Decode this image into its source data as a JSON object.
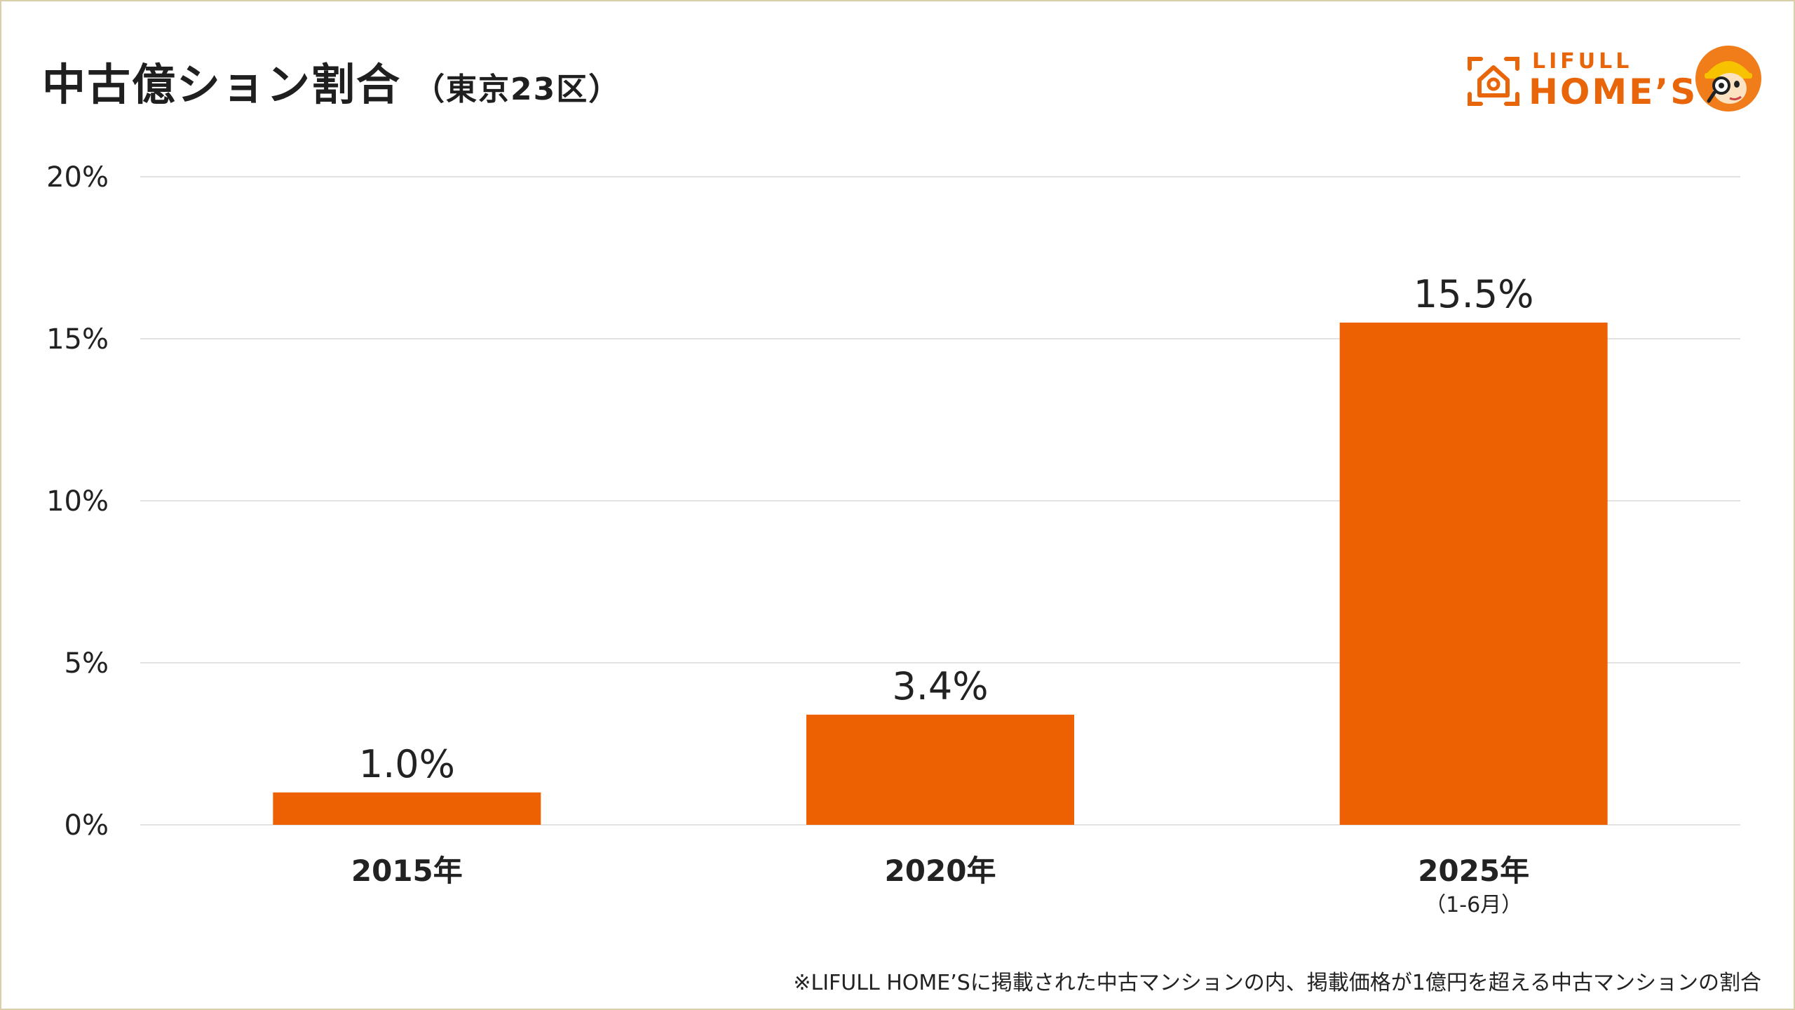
{
  "title": "中古億ション割合",
  "subtitle": "（東京23区）",
  "logo": {
    "brand_top": "LIFULL",
    "brand_main": "HOME’S",
    "icon": "house-icon",
    "mascot": "mascot-character"
  },
  "footnote": "※LIFULL HOME’Sに掲載された中古マンションの内、掲載価格が1億円を超える中古マンションの割合",
  "colors": {
    "bar": "#ED6103",
    "grid": "#e2e2e2",
    "text": "#222222",
    "accent": "#E8650A"
  },
  "chart_data": {
    "type": "bar",
    "categories": [
      "2015年",
      "2020年",
      "2025年"
    ],
    "category_notes": [
      "",
      "",
      "（1-6月）"
    ],
    "values": [
      1.0,
      3.4,
      15.5
    ],
    "value_labels": [
      "1.0%",
      "3.4%",
      "15.5%"
    ],
    "yticks": [
      0,
      5,
      10,
      15,
      20
    ],
    "ytick_labels": [
      "0%",
      "5%",
      "10%",
      "15%",
      "20%"
    ],
    "ylim": [
      0,
      20
    ],
    "grid": true,
    "legend": "none"
  }
}
